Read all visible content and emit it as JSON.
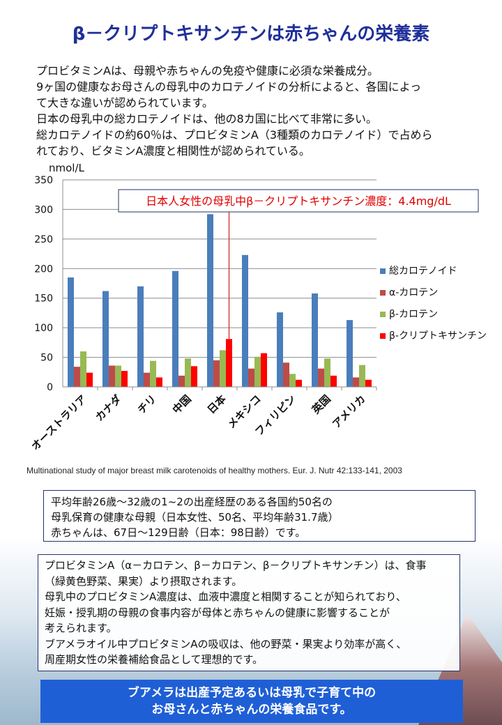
{
  "title": "β－クリプトキサンチンは赤ちゃんの栄養素",
  "intro_lines": [
    "プロビタミンAは、母親や赤ちゃんの免疫や健康に必須な栄養成分。",
    "9ヶ国の健康なお母さんの母乳中のカロテノイドの分析によると、各国によっ",
    "て大きな違いが認められています。",
    "日本の母乳中の総カロテノイドは、他の8カ国に比べて非常に多い。",
    "総カロテノイドの約60％は、プロビタミンA（3種類のカロテノイド）で占めら",
    "れており、ビタミンA濃度と相関性が認められている。"
  ],
  "chart_data": {
    "type": "bar",
    "ylabel": "nmol/L",
    "ylim": [
      0,
      350
    ],
    "yticks": [
      "0",
      "50",
      "100",
      "150",
      "200",
      "250",
      "300",
      "350"
    ],
    "grid": true,
    "legend_position": "right",
    "categories": [
      "オーストラリア",
      "カナダ",
      "チリ",
      "中国",
      "日本",
      "メキシコ",
      "フィリピン",
      "英国",
      "アメリカ"
    ],
    "series": [
      {
        "name": "総カロテノイド",
        "color": "#4a7ebb",
        "values": [
          185,
          162,
          170,
          196,
          292,
          223,
          126,
          158,
          113
        ]
      },
      {
        "name": "α-カロテン",
        "color": "#be4b48",
        "values": [
          34,
          36,
          24,
          19,
          45,
          31,
          41,
          31,
          16
        ]
      },
      {
        "name": "β-カロテン",
        "color": "#98b954",
        "values": [
          60,
          36,
          44,
          48,
          62,
          51,
          22,
          48,
          37
        ]
      },
      {
        "name": "β-クリプトキサンチン",
        "color": "#ff0000",
        "values": [
          24,
          27,
          16,
          35,
          81,
          57,
          12,
          19,
          12
        ]
      }
    ],
    "annotation": "日本人女性の母乳中β－クリプトキサンチン濃度：4.4mg/dL"
  },
  "source_text": "Multinational study of major breast milk carotenoids of healthy mothers. Eur. J. Nutr 42:133-141, 2003",
  "box1_lines": [
    "平均年齢26歳～32歳の1~2の出産経歴のある各国約50名の",
    "母乳保育の健康な母親（日本女性、50名、平均年齢31.7歳）",
    "赤ちゃんは、67日～129日齢（日本：98日齢）です。"
  ],
  "box2_lines": [
    "プロビタミンA（α－カロテン、β－カロテン、β－クリプトキサンチン）は、食事",
    "（緑黄色野菜、果実）より摂取されます。",
    "母乳中のプロビタミンA濃度は、血液中濃度と相関することが知られており、",
    "妊娠・授乳期の母親の食事内容が母体と赤ちゃんの健康に影響することが",
    "考えられます。",
    "ブアメラオイル中プロビタミンAの吸収は、他の野菜・果実より効率が高く、",
    "周産期女性の栄養補給食品として理想的です。"
  ],
  "banner_lines": [
    "ブアメラは出産予定あるいは母乳で子育て中の",
    "お母さんと赤ちゃんの栄養食品です。"
  ]
}
